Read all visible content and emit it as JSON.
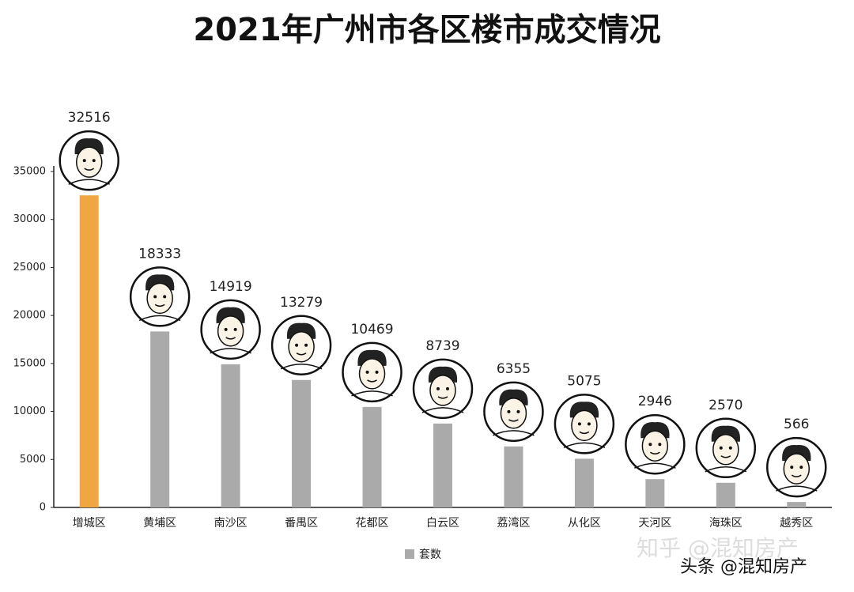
{
  "chart_data": {
    "type": "bar",
    "title": "2021年广州市各区楼市成交情况",
    "categories": [
      "增城区",
      "黄埔区",
      "南沙区",
      "番禺区",
      "花都区",
      "白云区",
      "荔湾区",
      "从化区",
      "天河区",
      "海珠区",
      "越秀区"
    ],
    "series": [
      {
        "name": "套数",
        "color": "#aaaaaa",
        "colors": [
          "#f0a742",
          "#aaaaaa",
          "#aaaaaa",
          "#aaaaaa",
          "#aaaaaa",
          "#aaaaaa",
          "#aaaaaa",
          "#aaaaaa",
          "#aaaaaa",
          "#aaaaaa",
          "#aaaaaa"
        ],
        "values": [
          32516,
          18333,
          14919,
          13279,
          10469,
          8739,
          6355,
          5075,
          2946,
          2570,
          566
        ]
      }
    ],
    "ylim": [
      0,
      35000
    ],
    "yticks": [
      0,
      5000,
      10000,
      15000,
      20000,
      25000,
      30000,
      35000
    ],
    "legend": "bottom",
    "watermarks": [
      "知乎 @混知房产",
      "头条 @混知房产"
    ]
  }
}
